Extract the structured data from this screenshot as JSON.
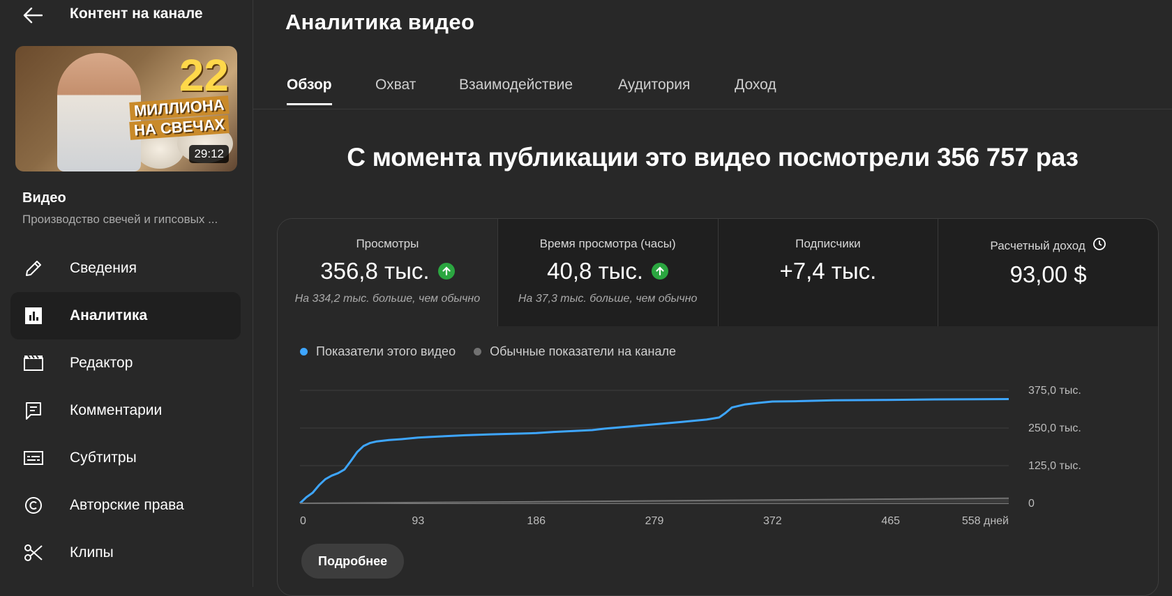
{
  "sidebar": {
    "header_title": "Контент на канале",
    "thumbnail": {
      "number": "22",
      "line1": "МИЛЛИОНА",
      "line2": "НА СВЕЧАХ",
      "duration": "29:12"
    },
    "video_label": "Видео",
    "video_name": "Производство свечей и гипсовых ...",
    "nav": [
      {
        "label": "Сведения",
        "icon": "pencil-icon"
      },
      {
        "label": "Аналитика",
        "icon": "analytics-icon",
        "active": true
      },
      {
        "label": "Редактор",
        "icon": "clapperboard-icon"
      },
      {
        "label": "Комментарии",
        "icon": "comment-icon"
      },
      {
        "label": "Субтитры",
        "icon": "subtitles-icon"
      },
      {
        "label": "Авторские права",
        "icon": "copyright-icon"
      },
      {
        "label": "Клипы",
        "icon": "scissors-icon"
      }
    ]
  },
  "main": {
    "title": "Аналитика видео",
    "tabs": [
      {
        "label": "Обзор",
        "active": true
      },
      {
        "label": "Охват"
      },
      {
        "label": "Взаимодействие"
      },
      {
        "label": "Аудитория"
      },
      {
        "label": "Доход"
      }
    ],
    "headline": "С момента публикации это видео посмотрели 356 757 раз",
    "metrics": [
      {
        "title": "Просмотры",
        "value": "356,8 тыс.",
        "trend": "up",
        "sub": "На 334,2 тыс. больше, чем обычно"
      },
      {
        "title": "Время просмотра (часы)",
        "value": "40,8 тыс.",
        "trend": "up",
        "sub": "На 37,3 тыс. больше, чем обычно"
      },
      {
        "title": "Подписчики",
        "value": "+7,4 тыс.",
        "sub": ""
      },
      {
        "title": "Расчетный доход",
        "value": "93,00 $",
        "sub": "",
        "icon": "clock-icon"
      }
    ],
    "legend": [
      {
        "label": "Показатели этого видео",
        "color": "#3ea6ff"
      },
      {
        "label": "Обычные показатели на канале",
        "color": "#717171"
      }
    ],
    "more_button": "Подробнее"
  },
  "chart_data": {
    "type": "line",
    "x_ticks": [
      "0",
      "93",
      "186",
      "279",
      "372",
      "465",
      "558 дней"
    ],
    "y_ticks": [
      "375,0 тыс.",
      "250,0 тыс.",
      "125,0 тыс.",
      "0"
    ],
    "xlim": [
      0,
      558
    ],
    "ylim": [
      0,
      375000
    ],
    "series": [
      {
        "name": "Показатели этого видео",
        "color": "#3ea6ff",
        "x": [
          0,
          5,
          10,
          15,
          20,
          25,
          30,
          35,
          40,
          45,
          50,
          55,
          60,
          70,
          80,
          93,
          110,
          130,
          150,
          186,
          200,
          230,
          240,
          260,
          279,
          300,
          320,
          330,
          335,
          340,
          350,
          360,
          372,
          390,
          420,
          460,
          500,
          558
        ],
        "y": [
          0,
          20000,
          35000,
          60000,
          80000,
          92000,
          100000,
          112000,
          140000,
          170000,
          190000,
          200000,
          205000,
          210000,
          213000,
          218000,
          222000,
          226000,
          229000,
          233000,
          237000,
          243000,
          248000,
          255000,
          262000,
          270000,
          278000,
          285000,
          300000,
          318000,
          328000,
          333000,
          338000,
          339000,
          342000,
          343000,
          345000,
          346000
        ]
      },
      {
        "name": "Обычные показатели на канале",
        "color": "#717171",
        "x": [
          0,
          93,
          186,
          279,
          372,
          465,
          558
        ],
        "y": [
          0,
          2500,
          5000,
          8000,
          11000,
          14000,
          17000
        ]
      }
    ]
  }
}
